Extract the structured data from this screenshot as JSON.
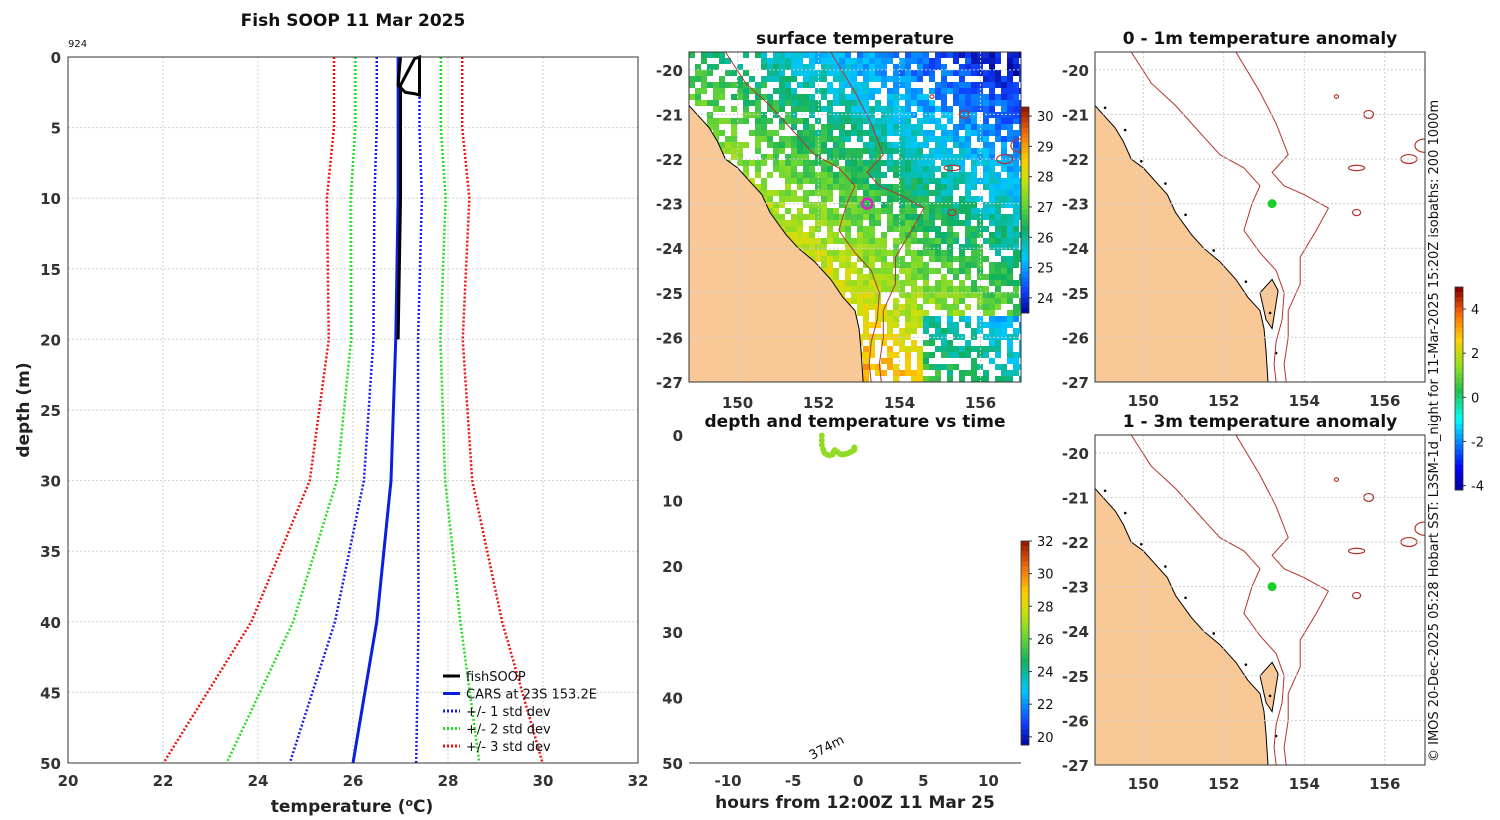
{
  "colors": {
    "land": "#f8c896",
    "isobath": "#b5332a",
    "fishsoop": "#000000",
    "cars": "#0a1fe0",
    "std1": "#1a1ae6",
    "std2": "#22dd22",
    "std3": "#ee1111",
    "ship": "#18d028",
    "magenta": "#e21cc8"
  },
  "side_caption": "© IMOS 20-Dec-2025 05:28 Hobart SST: L3SM-1d_night for 11-Mar-2025 15:20Z isobaths: 200  1000m",
  "chart_data": [
    {
      "id": "profile",
      "type": "line",
      "title": "Fish SOOP 11 Mar 2025",
      "corner_label": "924",
      "xlabel": "temperature (",
      "xlabel_sup": "o",
      "xlabel_end": "C)",
      "ylabel": "depth (m)",
      "xlim": [
        20,
        32
      ],
      "ylim": [
        0,
        50
      ],
      "xticks": [
        20,
        22,
        24,
        26,
        28,
        30,
        32
      ],
      "yticks": [
        0,
        5,
        10,
        15,
        20,
        25,
        30,
        35,
        40,
        45,
        50
      ],
      "depths": [
        0,
        5,
        10,
        20,
        30,
        40,
        50
      ],
      "cars_mean": [
        26.95,
        26.95,
        26.95,
        26.9,
        26.8,
        26.5,
        26.0
      ],
      "std": [
        0.45,
        0.45,
        0.5,
        0.47,
        0.57,
        0.88,
        1.33
      ],
      "fishsoop": {
        "depths": [
          0,
          2.0,
          2.5,
          2.6,
          2.7,
          0.1,
          0,
          0.1,
          2.0,
          5,
          10,
          20
        ],
        "temps": [
          27.0,
          26.95,
          27.1,
          27.3,
          27.4,
          27.4,
          27.4,
          27.3,
          27.0,
          27.0,
          27.0,
          26.95
        ]
      },
      "legend": [
        "fishSOOP",
        "CARS at 23S 153.2E",
        "+/- 1 std dev",
        "+/- 2 std dev",
        "+/- 3 std dev"
      ]
    },
    {
      "id": "sst",
      "type": "heatmap",
      "title": "surface temperature",
      "xlim": [
        148.8,
        157.0
      ],
      "ylim": [
        -27,
        -19.6
      ],
      "xticks": [
        150,
        152,
        154,
        156
      ],
      "yticks": [
        -20,
        -21,
        -22,
        -23,
        -24,
        -25,
        -26,
        -27
      ],
      "colorbar": {
        "min": 23.5,
        "max": 30.3,
        "ticks": [
          24,
          25,
          26,
          27,
          28,
          29,
          30
        ]
      },
      "marker": {
        "lon": 153.2,
        "lat": -23.0
      }
    },
    {
      "id": "anom1",
      "type": "heatmap",
      "title": "0 - 1m temperature anomaly",
      "xlim": [
        148.8,
        157.0
      ],
      "ylim": [
        -27,
        -19.6
      ],
      "xticks": [
        150,
        152,
        154,
        156
      ],
      "yticks": [
        -20,
        -21,
        -22,
        -23,
        -24,
        -25,
        -26,
        -27
      ],
      "colorbar": {
        "min": -4.2,
        "max": 5.0,
        "ticks": [
          4,
          2,
          0,
          -2,
          -4
        ]
      },
      "marker": {
        "lon": 153.2,
        "lat": -23.0
      }
    },
    {
      "id": "anom2",
      "type": "heatmap",
      "title": "1 - 3m temperature anomaly",
      "xlim": [
        148.8,
        157.0
      ],
      "ylim": [
        -27,
        -19.6
      ],
      "xticks": [
        150,
        152,
        154,
        156
      ],
      "yticks": [
        -20,
        -21,
        -22,
        -23,
        -24,
        -25,
        -26,
        -27
      ],
      "marker": {
        "lon": 153.2,
        "lat": -23.0
      }
    },
    {
      "id": "time",
      "type": "scatter",
      "title": "depth and temperature vs time",
      "xlabel": "hours from 12:00Z 11 Mar 25",
      "xlim": [
        -13,
        12.5
      ],
      "ylim": [
        0,
        50
      ],
      "xticks": [
        -10,
        -5,
        0,
        5,
        10
      ],
      "yticks": [
        0,
        10,
        20,
        30,
        40,
        50
      ],
      "annotation": "374m",
      "colorbar": {
        "min": 19.5,
        "max": 32,
        "ticks": [
          32,
          30,
          28,
          26,
          24,
          22,
          20
        ]
      },
      "points": [
        [
          -2.8,
          0.1
        ],
        [
          -2.8,
          0.8
        ],
        [
          -2.8,
          1.5
        ],
        [
          -2.7,
          2.2
        ],
        [
          -2.6,
          2.7
        ],
        [
          -2.4,
          3.0
        ],
        [
          -2.2,
          3.1
        ],
        [
          -2.0,
          3.0
        ],
        [
          -1.9,
          2.6
        ],
        [
          -1.8,
          2.3
        ],
        [
          -1.6,
          2.6
        ],
        [
          -1.4,
          2.9
        ],
        [
          -1.2,
          3.0
        ],
        [
          -1.0,
          2.9
        ],
        [
          -0.8,
          2.8
        ],
        [
          -0.6,
          2.6
        ],
        [
          -0.4,
          2.4
        ],
        [
          -0.3,
          2.2
        ],
        [
          -0.3,
          1.9
        ]
      ],
      "point_temp": 26.9
    }
  ]
}
